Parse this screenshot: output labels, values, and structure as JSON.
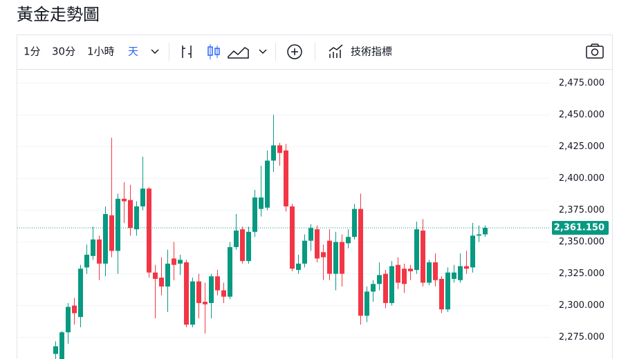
{
  "header": {
    "title": "黃金走勢圖"
  },
  "toolbar": {
    "intervals": [
      "1分",
      "30分",
      "1小時",
      "天"
    ],
    "indicators": "技術指標"
  },
  "chart_data": {
    "type": "candlestick",
    "up_color": "#089981",
    "down_color": "#f23645",
    "open": [
      2262,
      2256,
      2279,
      2300,
      2291,
      2330,
      2339,
      2352,
      2333,
      2371,
      2343,
      2384,
      2383,
      2360,
      2378,
      2392,
      2326,
      2322,
      2315,
      2337,
      2333,
      2334,
      2285,
      2319,
      2303,
      2302,
      2323,
      2312,
      2307,
      2346,
      2360,
      2335,
      2358,
      2376,
      2377,
      2414,
      2426,
      2422,
      2378,
      2328,
      2333,
      2351,
      2360,
      2342,
      2351,
      2325,
      2350,
      2349,
      2354,
      2376,
      2292,
      2311,
      2317,
      2325,
      2302,
      2332,
      2329,
      2329,
      2328,
      2359,
      2318,
      2334,
      2321,
      2297,
      2321,
      2320,
      2331,
      2330,
      2355,
      2356
    ],
    "high": [
      2272,
      2280,
      2302,
      2306,
      2332,
      2348,
      2362,
      2355,
      2378,
      2432,
      2388,
      2397,
      2395,
      2382,
      2417,
      2393,
      2332,
      2338,
      2344,
      2350,
      2340,
      2336,
      2322,
      2325,
      2318,
      2325,
      2328,
      2318,
      2350,
      2372,
      2362,
      2362,
      2391,
      2410,
      2422,
      2450,
      2428,
      2427,
      2380,
      2340,
      2356,
      2364,
      2363,
      2348,
      2360,
      2358,
      2356,
      2360,
      2380,
      2388,
      2315,
      2320,
      2334,
      2328,
      2335,
      2338,
      2333,
      2332,
      2366,
      2368,
      2336,
      2341,
      2323,
      2330,
      2332,
      2341,
      2343,
      2365,
      2363,
      2363
    ],
    "low": [
      2255,
      2253,
      2270,
      2285,
      2283,
      2325,
      2336,
      2320,
      2323,
      2338,
      2325,
      2365,
      2355,
      2355,
      2375,
      2322,
      2290,
      2308,
      2295,
      2320,
      2324,
      2283,
      2283,
      2290,
      2278,
      2290,
      2308,
      2302,
      2305,
      2344,
      2333,
      2333,
      2354,
      2370,
      2375,
      2405,
      2410,
      2374,
      2327,
      2325,
      2330,
      2343,
      2334,
      2320,
      2320,
      2312,
      2315,
      2345,
      2352,
      2285,
      2287,
      2303,
      2312,
      2298,
      2300,
      2313,
      2310,
      2320,
      2325,
      2315,
      2316,
      2315,
      2294,
      2295,
      2318,
      2318,
      2325,
      2326,
      2350,
      2354
    ],
    "close": [
      2268,
      2279,
      2299,
      2294,
      2329,
      2340,
      2352,
      2333,
      2372,
      2343,
      2384,
      2382,
      2361,
      2378,
      2392,
      2326,
      2321,
      2315,
      2333,
      2332,
      2336,
      2285,
      2319,
      2302,
      2301,
      2323,
      2312,
      2307,
      2346,
      2359,
      2335,
      2358,
      2385,
      2385,
      2414,
      2426,
      2420,
      2378,
      2329,
      2333,
      2351,
      2361,
      2337,
      2338,
      2325,
      2350,
      2325,
      2354,
      2376,
      2292,
      2311,
      2317,
      2324,
      2302,
      2331,
      2318,
      2317,
      2327,
      2360,
      2318,
      2334,
      2320,
      2297,
      2326,
      2326,
      2331,
      2329,
      2355,
      2356,
      2361.15
    ],
    "last_price": {
      "value": 2361.15,
      "label": "2,361.150"
    },
    "ylim": [
      2258,
      2486
    ],
    "yticks": [
      {
        "value": 2275,
        "label": "2,275.000"
      },
      {
        "value": 2300,
        "label": "2,300.000"
      },
      {
        "value": 2325,
        "label": "2,325.000"
      },
      {
        "value": 2350,
        "label": "2,350.000"
      },
      {
        "value": 2375,
        "label": "2,375.000"
      },
      {
        "value": 2400,
        "label": "2,400.000"
      },
      {
        "value": 2425,
        "label": "2,425.000"
      },
      {
        "value": 2450,
        "label": "2,450.000"
      },
      {
        "value": 2475,
        "label": "2,475.000"
      }
    ],
    "grid": true
  }
}
